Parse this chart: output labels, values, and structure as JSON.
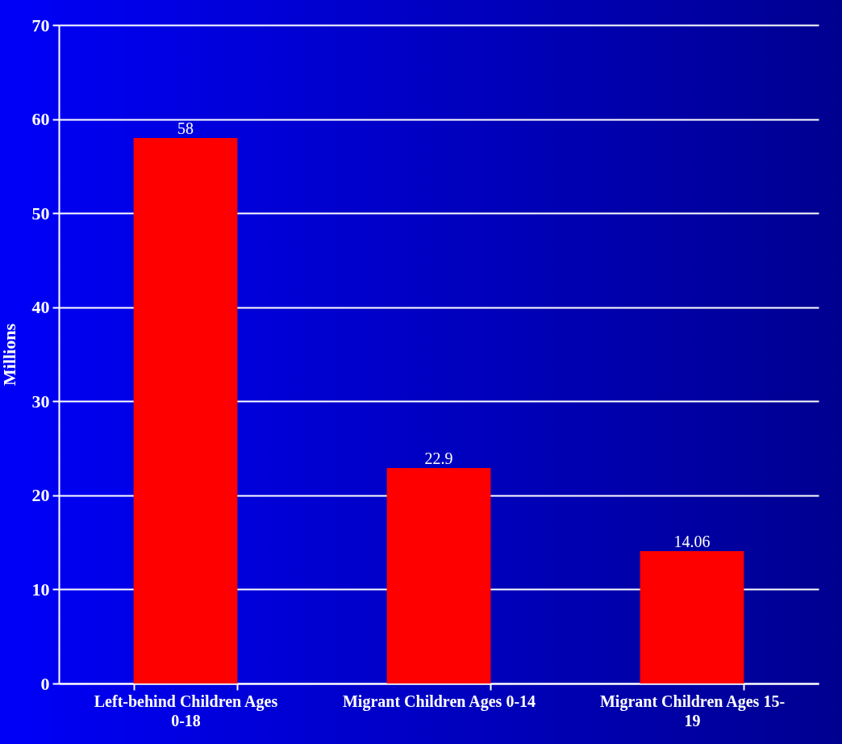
{
  "chart_data": {
    "type": "bar",
    "ylabel": "Millions",
    "categories": [
      "Left-behind Children Ages 0-18",
      "Migrant Children Ages 0-14",
      "Migrant Children Ages 15-19"
    ],
    "values": [
      58,
      22.9,
      14.06
    ],
    "color": "#ff0000",
    "ylim": [
      0,
      70
    ],
    "yticks": [
      0,
      10,
      20,
      30,
      40,
      50,
      60,
      70
    ],
    "grid": "y",
    "data_labels": true
  }
}
